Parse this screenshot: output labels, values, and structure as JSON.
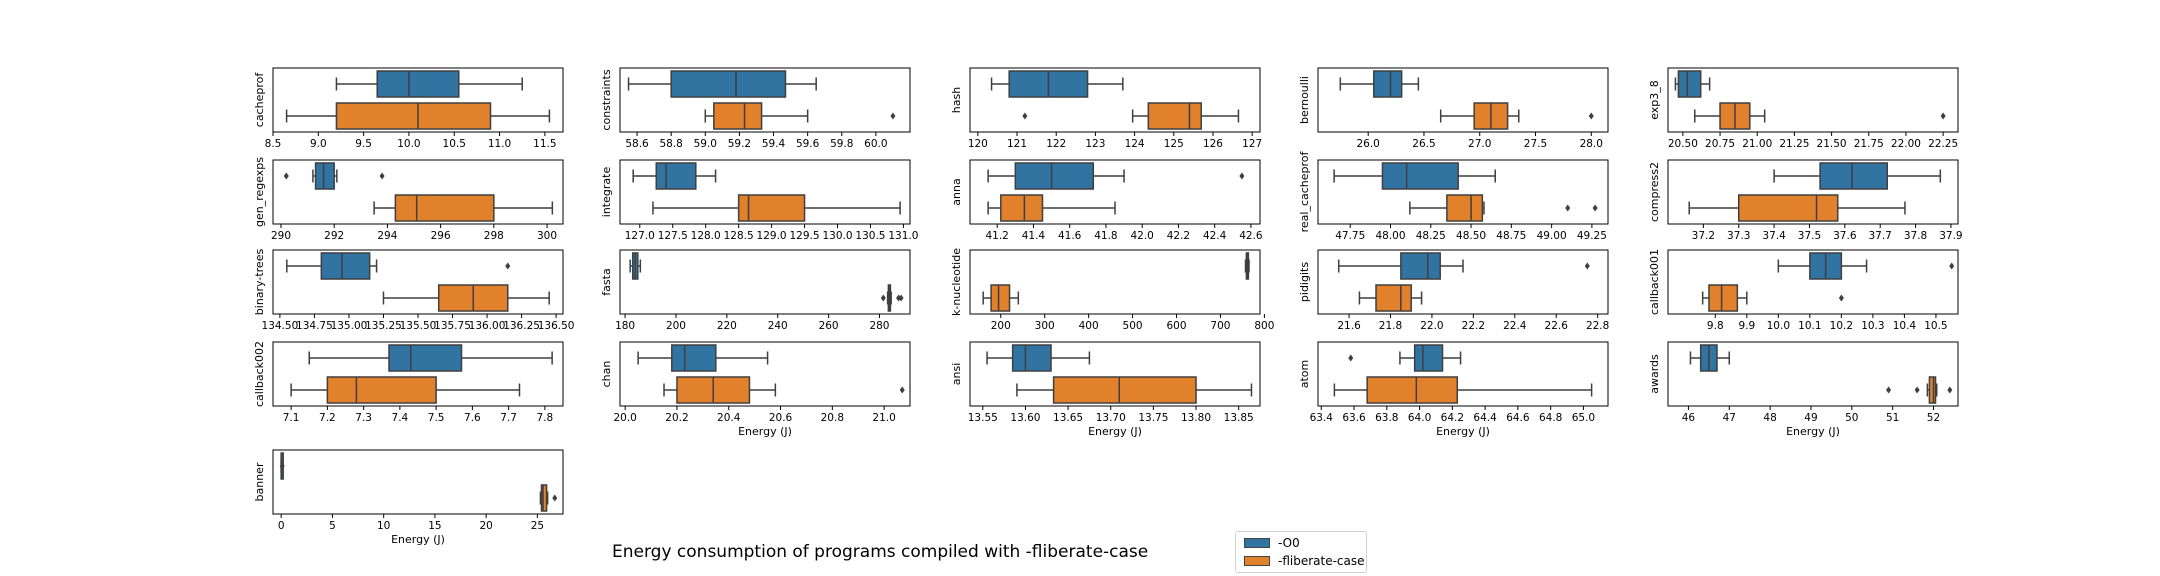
{
  "title": "Energy consumption of programs compiled with -fliberate-case",
  "legend": {
    "items": [
      {
        "label": "-O0",
        "color": "#3274a1"
      },
      {
        "label": "-fliberate-case",
        "color": "#e1812c"
      }
    ]
  },
  "chart_data": {
    "type": "box",
    "xlabel": "Energy (J)",
    "series_names": [
      "-O0",
      "-fliberate-case"
    ],
    "colors": {
      "-O0": "#3274a1",
      "-fliberate-case": "#e1812c"
    },
    "panels": [
      {
        "name": "cacheprof",
        "xlim": [
          8.5,
          11.7
        ],
        "ticks": [
          8.5,
          9.0,
          9.5,
          10.0,
          10.5,
          11.0,
          11.5
        ],
        "tick_labels": [
          "8.5",
          "9.0",
          "9.5",
          "10.0",
          "10.5",
          "11.0",
          "11.5"
        ],
        "boxes": [
          {
            "series": "-O0",
            "whislo": 9.2,
            "q1": 9.65,
            "med": 10.0,
            "q3": 10.55,
            "whishi": 11.25,
            "fliers": []
          },
          {
            "series": "-fliberate-case",
            "whislo": 8.65,
            "q1": 9.2,
            "med": 10.1,
            "q3": 10.9,
            "whishi": 11.55,
            "fliers": []
          }
        ]
      },
      {
        "name": "constraints",
        "xlim": [
          58.5,
          60.2
        ],
        "ticks": [
          58.6,
          58.8,
          59.0,
          59.2,
          59.4,
          59.6,
          59.8,
          60.0
        ],
        "tick_labels": [
          "58.6",
          "58.8",
          "59.0",
          "59.2",
          "59.4",
          "59.6",
          "59.8",
          "60.0"
        ],
        "boxes": [
          {
            "series": "-O0",
            "whislo": 58.55,
            "q1": 58.8,
            "med": 59.18,
            "q3": 59.47,
            "whishi": 59.65,
            "fliers": []
          },
          {
            "series": "-fliberate-case",
            "whislo": 59.0,
            "q1": 59.05,
            "med": 59.23,
            "q3": 59.33,
            "whishi": 59.6,
            "fliers": [
              60.1
            ]
          }
        ]
      },
      {
        "name": "hash",
        "xlim": [
          119.8,
          127.2
        ],
        "ticks": [
          120,
          121,
          122,
          123,
          124,
          125,
          126,
          127
        ],
        "tick_labels": [
          "120",
          "121",
          "122",
          "123",
          "124",
          "125",
          "126",
          "127"
        ],
        "boxes": [
          {
            "series": "-O0",
            "whislo": 120.35,
            "q1": 120.8,
            "med": 121.8,
            "q3": 122.8,
            "whishi": 123.7,
            "fliers": []
          },
          {
            "series": "-fliberate-case",
            "whislo": 123.95,
            "q1": 124.35,
            "med": 125.4,
            "q3": 125.7,
            "whishi": 126.65,
            "fliers": [
              121.2
            ]
          }
        ]
      },
      {
        "name": "bernoulli",
        "xlim": [
          25.55,
          28.15
        ],
        "ticks": [
          26.0,
          26.5,
          27.0,
          27.5,
          28.0
        ],
        "tick_labels": [
          "26.0",
          "26.5",
          "27.0",
          "27.5",
          "28.0"
        ],
        "boxes": [
          {
            "series": "-O0",
            "whislo": 25.75,
            "q1": 26.05,
            "med": 26.2,
            "q3": 26.3,
            "whishi": 26.45,
            "fliers": []
          },
          {
            "series": "-fliberate-case",
            "whislo": 26.65,
            "q1": 26.95,
            "med": 27.1,
            "q3": 27.25,
            "whishi": 27.35,
            "fliers": [
              28.0
            ]
          }
        ]
      },
      {
        "name": "exp3_8",
        "xlim": [
          20.4,
          22.35
        ],
        "ticks": [
          20.5,
          20.75,
          21.0,
          21.25,
          21.5,
          21.75,
          22.0,
          22.25
        ],
        "tick_labels": [
          "20.50",
          "20.75",
          "21.00",
          "21.25",
          "21.50",
          "21.75",
          "22.00",
          "22.25"
        ],
        "boxes": [
          {
            "series": "-O0",
            "whislo": 20.45,
            "q1": 20.47,
            "med": 20.53,
            "q3": 20.62,
            "whishi": 20.68,
            "fliers": []
          },
          {
            "series": "-fliberate-case",
            "whislo": 20.58,
            "q1": 20.75,
            "med": 20.85,
            "q3": 20.95,
            "whishi": 21.05,
            "fliers": [
              22.25
            ]
          }
        ]
      },
      {
        "name": "gen_regexps",
        "xlim": [
          289.7,
          300.6
        ],
        "ticks": [
          290,
          292,
          294,
          296,
          298,
          300
        ],
        "tick_labels": [
          "290",
          "292",
          "294",
          "296",
          "298",
          "300"
        ],
        "boxes": [
          {
            "series": "-O0",
            "whislo": 291.2,
            "q1": 291.3,
            "med": 291.6,
            "q3": 292.0,
            "whishi": 292.1,
            "fliers": [
              290.2,
              293.8
            ]
          },
          {
            "series": "-fliberate-case",
            "whislo": 293.5,
            "q1": 294.3,
            "med": 295.1,
            "q3": 298.0,
            "whishi": 300.2,
            "fliers": []
          }
        ]
      },
      {
        "name": "integrate",
        "xlim": [
          126.7,
          131.1
        ],
        "ticks": [
          127.0,
          127.5,
          128.0,
          128.5,
          129.0,
          129.5,
          130.0,
          130.5,
          131.0
        ],
        "tick_labels": [
          "127.0",
          "127.5",
          "128.0",
          "128.5",
          "129.0",
          "129.5",
          "130.0",
          "130.5",
          "131.0"
        ],
        "boxes": [
          {
            "series": "-O0",
            "whislo": 126.9,
            "q1": 127.25,
            "med": 127.4,
            "q3": 127.85,
            "whishi": 128.15,
            "fliers": []
          },
          {
            "series": "-fliberate-case",
            "whislo": 127.2,
            "q1": 128.5,
            "med": 128.65,
            "q3": 129.5,
            "whishi": 130.95,
            "fliers": []
          }
        ]
      },
      {
        "name": "anna",
        "xlim": [
          41.05,
          42.65
        ],
        "ticks": [
          41.2,
          41.4,
          41.6,
          41.8,
          42.0,
          42.2,
          42.4,
          42.6
        ],
        "tick_labels": [
          "41.2",
          "41.4",
          "41.6",
          "41.8",
          "42.0",
          "42.2",
          "42.4",
          "42.6"
        ],
        "boxes": [
          {
            "series": "-O0",
            "whislo": 41.15,
            "q1": 41.3,
            "med": 41.5,
            "q3": 41.73,
            "whishi": 41.9,
            "fliers": [
              42.55
            ]
          },
          {
            "series": "-fliberate-case",
            "whislo": 41.15,
            "q1": 41.22,
            "med": 41.35,
            "q3": 41.45,
            "whishi": 41.85,
            "fliers": []
          }
        ]
      },
      {
        "name": "real_cacheprof",
        "xlim": [
          47.55,
          49.35
        ],
        "ticks": [
          47.75,
          48.0,
          48.25,
          48.5,
          48.75,
          49.0,
          49.25
        ],
        "tick_labels": [
          "47.75",
          "48.00",
          "48.25",
          "48.50",
          "48.75",
          "49.00",
          "49.25"
        ],
        "boxes": [
          {
            "series": "-O0",
            "whislo": 47.65,
            "q1": 47.95,
            "med": 48.1,
            "q3": 48.42,
            "whishi": 48.65,
            "fliers": []
          },
          {
            "series": "-fliberate-case",
            "whislo": 48.12,
            "q1": 48.35,
            "med": 48.5,
            "q3": 48.57,
            "whishi": 48.58,
            "fliers": [
              49.1,
              49.27
            ]
          }
        ]
      },
      {
        "name": "compress2",
        "xlim": [
          37.1,
          37.92
        ],
        "ticks": [
          37.2,
          37.3,
          37.4,
          37.5,
          37.6,
          37.7,
          37.8,
          37.9
        ],
        "tick_labels": [
          "37.2",
          "37.3",
          "37.4",
          "37.5",
          "37.6",
          "37.7",
          "37.8",
          "37.9"
        ],
        "boxes": [
          {
            "series": "-O0",
            "whislo": 37.4,
            "q1": 37.53,
            "med": 37.62,
            "q3": 37.72,
            "whishi": 37.87,
            "fliers": []
          },
          {
            "series": "-fliberate-case",
            "whislo": 37.16,
            "q1": 37.3,
            "med": 37.52,
            "q3": 37.58,
            "whishi": 37.77,
            "fliers": []
          }
        ]
      },
      {
        "name": "binary-trees",
        "xlim": [
          134.45,
          136.55
        ],
        "ticks": [
          134.5,
          134.75,
          135.0,
          135.25,
          135.5,
          135.75,
          136.0,
          136.25,
          136.5
        ],
        "tick_labels": [
          "134.50",
          "134.75",
          "135.00",
          "135.25",
          "135.50",
          "135.75",
          "136.00",
          "136.25",
          "136.50"
        ],
        "boxes": [
          {
            "series": "-O0",
            "whislo": 134.55,
            "q1": 134.8,
            "med": 134.95,
            "q3": 135.15,
            "whishi": 135.2,
            "fliers": [
              136.15
            ]
          },
          {
            "series": "-fliberate-case",
            "whislo": 135.25,
            "q1": 135.65,
            "med": 135.9,
            "q3": 136.15,
            "whishi": 136.45,
            "fliers": []
          }
        ]
      },
      {
        "name": "fasta",
        "xlim": [
          178,
          292
        ],
        "ticks": [
          180,
          200,
          220,
          240,
          260,
          280
        ],
        "tick_labels": [
          "180",
          "200",
          "220",
          "240",
          "260",
          "280"
        ],
        "boxes": [
          {
            "series": "-O0",
            "whislo": 182,
            "q1": 183,
            "med": 184,
            "q3": 185,
            "whishi": 186,
            "fliers": []
          },
          {
            "series": "-fliberate-case",
            "whislo": 283.2,
            "q1": 283.5,
            "med": 284,
            "q3": 284.3,
            "whishi": 284.6,
            "fliers": [
              281.5,
              287.5,
              288.5
            ]
          }
        ]
      },
      {
        "name": "k-nucleotide",
        "xlim": [
          130,
          790
        ],
        "ticks": [
          200,
          300,
          400,
          500,
          600,
          700,
          800
        ],
        "tick_labels": [
          "200",
          "300",
          "400",
          "500",
          "600",
          "700",
          "800"
        ],
        "boxes": [
          {
            "series": "-O0",
            "whislo": 757,
            "q1": 759,
            "med": 761,
            "q3": 763,
            "whishi": 765,
            "fliers": []
          },
          {
            "series": "-fliberate-case",
            "whislo": 160,
            "q1": 178,
            "med": 195,
            "q3": 220,
            "whishi": 240,
            "fliers": []
          }
        ]
      },
      {
        "name": "pidigits",
        "xlim": [
          21.45,
          22.85
        ],
        "ticks": [
          21.6,
          21.8,
          22.0,
          22.2,
          22.4,
          22.6,
          22.8
        ],
        "tick_labels": [
          "21.6",
          "21.8",
          "22.0",
          "22.2",
          "22.4",
          "22.6",
          "22.8"
        ],
        "boxes": [
          {
            "series": "-O0",
            "whislo": 21.55,
            "q1": 21.85,
            "med": 21.98,
            "q3": 22.04,
            "whishi": 22.15,
            "fliers": [
              22.75
            ]
          },
          {
            "series": "-fliberate-case",
            "whislo": 21.65,
            "q1": 21.73,
            "med": 21.85,
            "q3": 21.9,
            "whishi": 21.95,
            "fliers": []
          }
        ]
      },
      {
        "name": "callback001",
        "xlim": [
          9.65,
          10.57
        ],
        "ticks": [
          9.8,
          9.9,
          10.0,
          10.1,
          10.2,
          10.3,
          10.4,
          10.5
        ],
        "tick_labels": [
          "9.8",
          "9.9",
          "10.0",
          "10.1",
          "10.2",
          "10.3",
          "10.4",
          "10.5"
        ],
        "boxes": [
          {
            "series": "-O0",
            "whislo": 10.0,
            "q1": 10.1,
            "med": 10.15,
            "q3": 10.2,
            "whishi": 10.28,
            "fliers": [
              10.55
            ]
          },
          {
            "series": "-fliberate-case",
            "whislo": 9.76,
            "q1": 9.78,
            "med": 9.82,
            "q3": 9.87,
            "whishi": 9.9,
            "fliers": [
              10.2
            ]
          }
        ]
      },
      {
        "name": "callback002",
        "xlim": [
          7.05,
          7.85
        ],
        "ticks": [
          7.1,
          7.2,
          7.3,
          7.4,
          7.5,
          7.6,
          7.7,
          7.8
        ],
        "tick_labels": [
          "7.1",
          "7.2",
          "7.3",
          "7.4",
          "7.5",
          "7.6",
          "7.7",
          "7.8"
        ],
        "boxes": [
          {
            "series": "-O0",
            "whislo": 7.15,
            "q1": 7.37,
            "med": 7.43,
            "q3": 7.57,
            "whishi": 7.82,
            "fliers": []
          },
          {
            "series": "-fliberate-case",
            "whislo": 7.1,
            "q1": 7.2,
            "med": 7.28,
            "q3": 7.5,
            "whishi": 7.73,
            "fliers": []
          }
        ]
      },
      {
        "name": "chan",
        "xlim": [
          19.98,
          21.1
        ],
        "ticks": [
          20.0,
          20.2,
          20.4,
          20.6,
          20.8,
          21.0
        ],
        "tick_labels": [
          "20.0",
          "20.2",
          "20.4",
          "20.6",
          "20.8",
          "21.0"
        ],
        "boxes": [
          {
            "series": "-O0",
            "whislo": 20.05,
            "q1": 20.18,
            "med": 20.23,
            "q3": 20.35,
            "whishi": 20.55,
            "fliers": []
          },
          {
            "series": "-fliberate-case",
            "whislo": 20.15,
            "q1": 20.2,
            "med": 20.34,
            "q3": 20.48,
            "whishi": 20.58,
            "fliers": [
              21.07
            ]
          }
        ]
      },
      {
        "name": "ansi",
        "xlim": [
          13.535,
          13.875
        ],
        "ticks": [
          13.55,
          13.6,
          13.65,
          13.7,
          13.75,
          13.8,
          13.85
        ],
        "tick_labels": [
          "13.55",
          "13.60",
          "13.65",
          "13.70",
          "13.75",
          "13.80",
          "13.85"
        ],
        "boxes": [
          {
            "series": "-O0",
            "whislo": 13.555,
            "q1": 13.585,
            "med": 13.6,
            "q3": 13.63,
            "whishi": 13.675,
            "fliers": []
          },
          {
            "series": "-fliberate-case",
            "whislo": 13.59,
            "q1": 13.633,
            "med": 13.71,
            "q3": 13.8,
            "whishi": 13.865,
            "fliers": []
          }
        ]
      },
      {
        "name": "atom",
        "xlim": [
          63.38,
          65.15
        ],
        "ticks": [
          63.4,
          63.6,
          63.8,
          64.0,
          64.2,
          64.4,
          64.6,
          64.8,
          65.0
        ],
        "tick_labels": [
          "63.4",
          "63.6",
          "63.8",
          "64.0",
          "64.2",
          "64.4",
          "64.6",
          "64.8",
          "65.0"
        ],
        "boxes": [
          {
            "series": "-O0",
            "whislo": 63.88,
            "q1": 63.97,
            "med": 64.02,
            "q3": 64.14,
            "whishi": 64.25,
            "fliers": [
              63.58
            ]
          },
          {
            "series": "-fliberate-case",
            "whislo": 63.48,
            "q1": 63.68,
            "med": 63.98,
            "q3": 64.23,
            "whishi": 65.05,
            "fliers": []
          }
        ]
      },
      {
        "name": "awards",
        "xlim": [
          45.5,
          52.6
        ],
        "ticks": [
          46,
          47,
          48,
          49,
          50,
          51,
          52
        ],
        "tick_labels": [
          "46",
          "47",
          "48",
          "49",
          "50",
          "51",
          "52"
        ],
        "boxes": [
          {
            "series": "-O0",
            "whislo": 46.05,
            "q1": 46.3,
            "med": 46.5,
            "q3": 46.7,
            "whishi": 47.0,
            "fliers": []
          },
          {
            "series": "-fliberate-case",
            "whislo": 51.85,
            "q1": 51.9,
            "med": 52.0,
            "q3": 52.05,
            "whishi": 52.08,
            "fliers": [
              50.9,
              51.6,
              52.4
            ]
          }
        ]
      },
      {
        "name": "banner",
        "xlim": [
          -0.8,
          27.5
        ],
        "ticks": [
          0,
          5,
          10,
          15,
          20,
          25
        ],
        "tick_labels": [
          "0",
          "5",
          "10",
          "15",
          "20",
          "25"
        ],
        "boxes": [
          {
            "series": "-O0",
            "whislo": 0.0,
            "q1": 0.0,
            "med": 0.0,
            "q3": 0.0,
            "whishi": 0.0,
            "fliers": [
              0.1
            ]
          },
          {
            "series": "-fliberate-case",
            "whislo": 25.3,
            "q1": 25.4,
            "med": 25.55,
            "q3": 25.9,
            "whishi": 26.0,
            "fliers": [
              26.7
            ]
          }
        ]
      }
    ],
    "xlabel_panels": [
      "chan",
      "ansi",
      "atom",
      "awards",
      "banner"
    ]
  }
}
